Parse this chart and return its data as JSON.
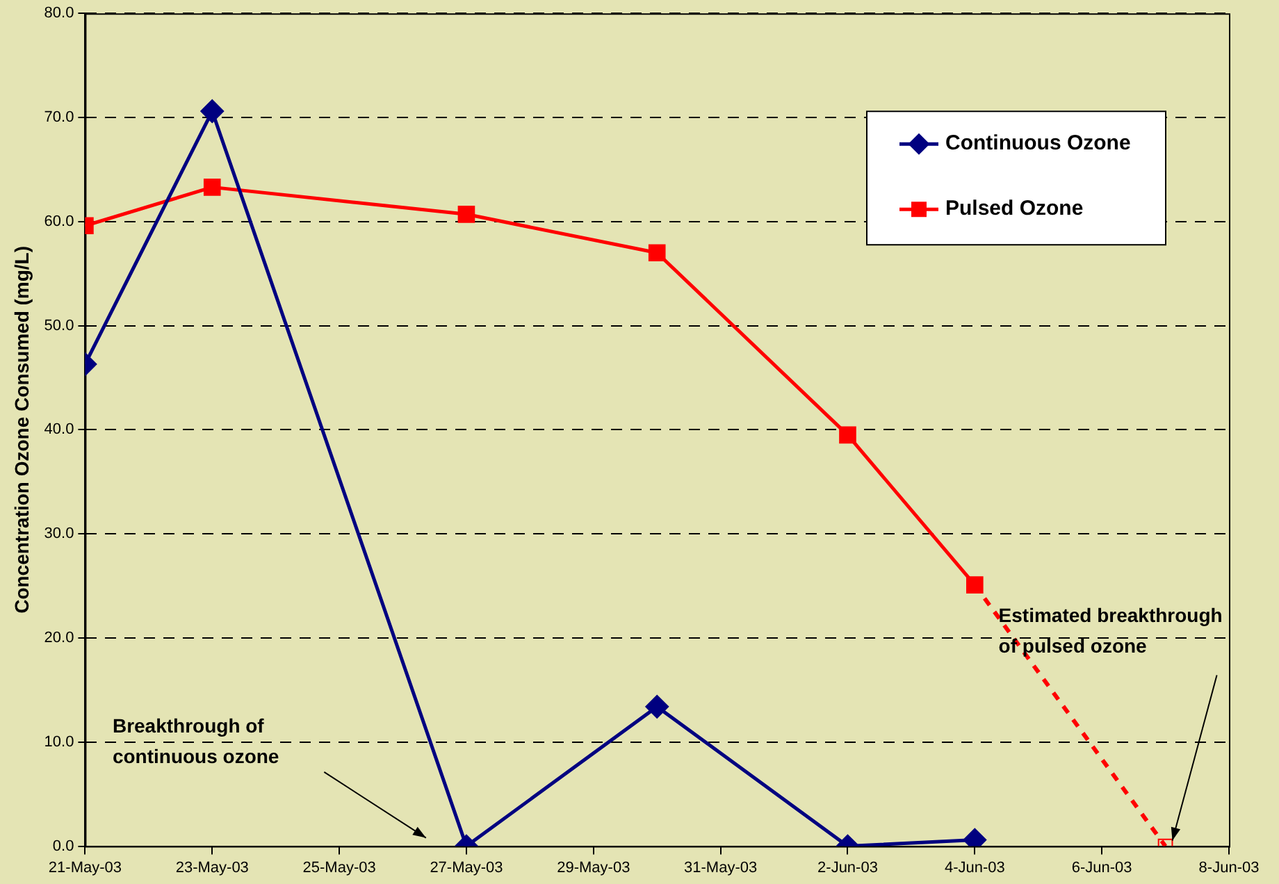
{
  "chart_data": {
    "type": "line",
    "ylabel": "Concentration Ozone Consumed (mg/L)",
    "series": [
      {
        "name": "Continuous Ozone",
        "color": "#000080",
        "marker": "diamond",
        "x": [
          "--05-21",
          "--05-23",
          "--05-27",
          "--05-30",
          "--06-02",
          "--06-04"
        ],
        "values": [
          46.3,
          70.6,
          0,
          13.4,
          0,
          0.6
        ]
      },
      {
        "name": "Pulsed Ozone",
        "color": "#ff0000",
        "marker": "square",
        "x": [
          "--05-21",
          "--05-23",
          "--05-27",
          "--05-30",
          "--06-02",
          "--06-04"
        ],
        "values": [
          59.6,
          63.3,
          60.7,
          57.0,
          39.5,
          25.1
        ]
      },
      {
        "color": "#ff0000",
        "marker": "square",
        "line_style": "dashed",
        "x": [
          "--06-04",
          "--06-07"
        ],
        "values": [
          25.1,
          0
        ]
      }
    ],
    "xlim": [
      "--05-21",
      "--06-08"
    ],
    "xticks": [
      {
        "value": "--05-21",
        "label": "21-May-03"
      },
      {
        "value": "--05-23",
        "label": "23-May-03"
      },
      {
        "value": "--05-25",
        "label": "25-May-03"
      },
      {
        "value": "--05-27",
        "label": "27-May-03"
      },
      {
        "value": "--05-29",
        "label": "29-May-03"
      },
      {
        "value": "--05-31",
        "label": "31-May-03"
      },
      {
        "value": "--06-02",
        "label": "2-Jun-03"
      },
      {
        "value": "--06-04",
        "label": "4-Jun-03"
      },
      {
        "value": "--06-06",
        "label": "6-Jun-03"
      },
      {
        "value": "--06-08",
        "label": "8-Jun-03"
      }
    ],
    "ylim": [
      0,
      80
    ],
    "yticks": [
      {
        "value": 0,
        "label": "0.0"
      },
      {
        "value": 10,
        "label": "10.0"
      },
      {
        "value": 20,
        "label": "20.0"
      },
      {
        "value": 30,
        "label": "30.0"
      },
      {
        "value": 40,
        "label": "40.0"
      },
      {
        "value": 50,
        "label": "50.0"
      },
      {
        "value": 60,
        "label": "60.0"
      },
      {
        "value": 70,
        "label": "70.0"
      },
      {
        "value": 80,
        "label": "80.0"
      }
    ],
    "grid": "y",
    "legend": "top right",
    "annotations": [
      "Breakthrough of\ncontinuous ozone",
      {
        "text": "Estimated breakthrough\nof pulsed ozone",
        "x": "--06-07",
        "y": 0
      }
    ]
  }
}
